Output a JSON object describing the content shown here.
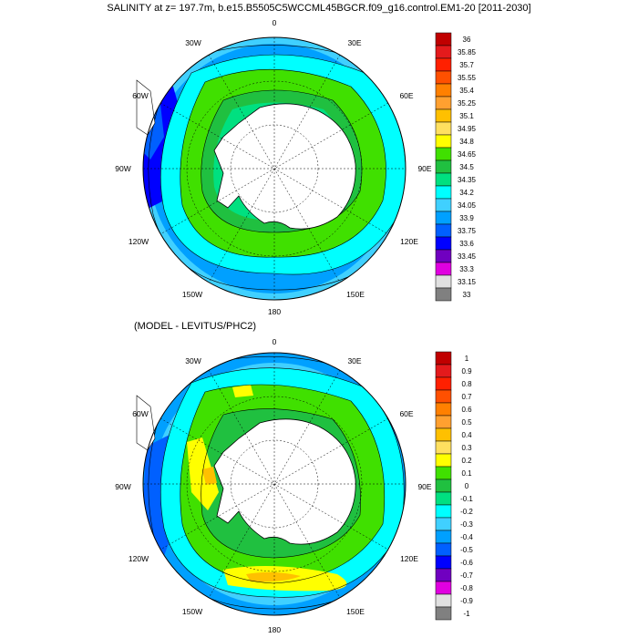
{
  "top_panel": {
    "title": "SALINITY at z= 197.7m, b.e15.B5505C5WCCML45BGCR.f09_g16.control.EM1-20 [2011-2030]",
    "lon_labels": [
      "0",
      "30E",
      "60E",
      "90E",
      "120E",
      "150E",
      "180",
      "150W",
      "120W",
      "90W",
      "60W",
      "30W"
    ],
    "colorbar": {
      "labels": [
        "36",
        "35.85",
        "35.7",
        "35.55",
        "35.4",
        "35.25",
        "35.1",
        "34.95",
        "34.8",
        "34.65",
        "34.5",
        "34.35",
        "34.2",
        "34.05",
        "33.9",
        "33.75",
        "33.6",
        "33.45",
        "33.3",
        "33.15",
        "33"
      ],
      "colors": [
        "#c00000",
        "#e41a1c",
        "#ff2000",
        "#ff5000",
        "#ff8000",
        "#ffa030",
        "#ffc000",
        "#ffe060",
        "#ffff00",
        "#40e000",
        "#20c040",
        "#00e080",
        "#00ffff",
        "#40d0ff",
        "#00a0ff",
        "#0060ff",
        "#0000ff",
        "#7000c0",
        "#e000e0",
        "#e0e0e0",
        "#808080"
      ]
    }
  },
  "bottom_panel": {
    "title": "(MODEL - LEVITUS/PHC2)",
    "lon_labels": [
      "0",
      "30E",
      "60E",
      "90E",
      "120E",
      "150E",
      "180",
      "150W",
      "120W",
      "90W",
      "60W",
      "30W"
    ],
    "colorbar": {
      "labels": [
        "1",
        "0.9",
        "0.8",
        "0.7",
        "0.6",
        "0.5",
        "0.4",
        "0.3",
        "0.2",
        "0.1",
        "0",
        "-0.1",
        "-0.2",
        "-0.3",
        "-0.4",
        "-0.5",
        "-0.6",
        "-0.7",
        "-0.8",
        "-0.9",
        "-1"
      ],
      "colors": [
        "#c00000",
        "#e41a1c",
        "#ff2000",
        "#ff5000",
        "#ff8000",
        "#ffa030",
        "#ffc000",
        "#ffe060",
        "#ffff00",
        "#40e000",
        "#20c040",
        "#00e080",
        "#00ffff",
        "#40d0ff",
        "#00a0ff",
        "#0060ff",
        "#0000ff",
        "#7000c0",
        "#e000e0",
        "#e0e0e0",
        "#808080"
      ]
    }
  }
}
